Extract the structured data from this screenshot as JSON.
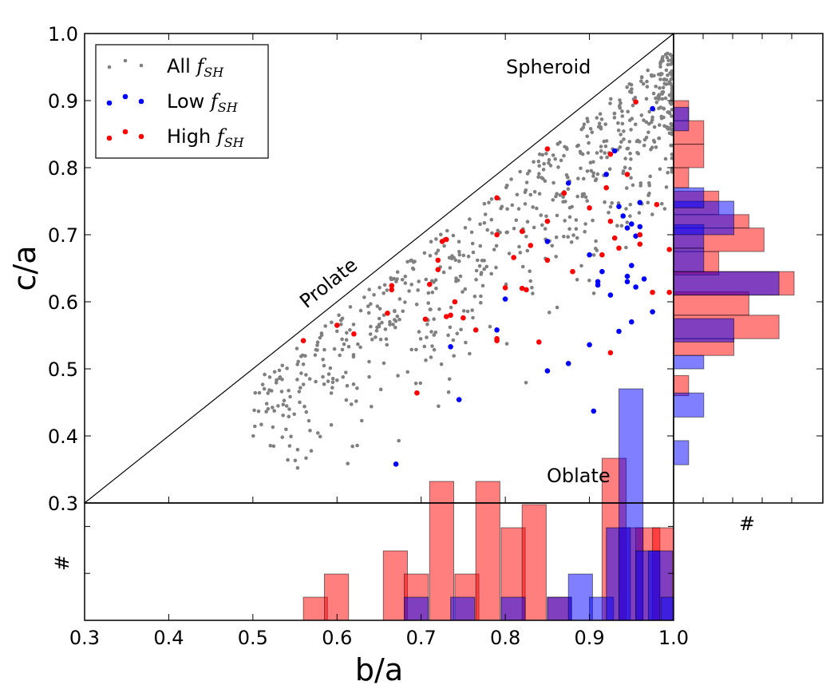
{
  "chart_data": {
    "type": "scatter",
    "title": "",
    "xlabel": "b/a",
    "ylabel": "c/a",
    "xlim": [
      0.3,
      1.0
    ],
    "ylim": [
      0.3,
      1.0
    ],
    "xticks": [
      "0.3",
      "0.4",
      "0.5",
      "0.6",
      "0.7",
      "0.8",
      "0.9",
      "1.0"
    ],
    "yticks": [
      "0.3",
      "0.4",
      "0.5",
      "0.6",
      "0.7",
      "0.8",
      "0.9",
      "1.0"
    ],
    "grid": false,
    "legend_position": "top-left",
    "annotations": {
      "spheroid": "Spheroid",
      "prolate": "Prolate",
      "oblate": "Oblate"
    },
    "legend": [
      {
        "name": "All",
        "sub": "f",
        "subscript": "SH",
        "color": "#808080"
      },
      {
        "name": "Low",
        "sub": "f",
        "subscript": "SH",
        "color": "#0000ff"
      },
      {
        "name": "High",
        "sub": "f",
        "subscript": "SH",
        "color": "#ff0000"
      }
    ],
    "histogram_label": "#",
    "series": [
      {
        "name": "Low f_SH",
        "color": "#0000ff",
        "points": [
          [
            0.975,
            0.888
          ],
          [
            0.93,
            0.825
          ],
          [
            0.92,
            0.79
          ],
          [
            0.875,
            0.777
          ],
          [
            0.96,
            0.748
          ],
          [
            0.935,
            0.742
          ],
          [
            0.94,
            0.728
          ],
          [
            0.95,
            0.716
          ],
          [
            0.945,
            0.71
          ],
          [
            0.96,
            0.712
          ],
          [
            0.955,
            0.698
          ],
          [
            0.85,
            0.69
          ],
          [
            0.9,
            0.67
          ],
          [
            0.95,
            0.654
          ],
          [
            0.915,
            0.645
          ],
          [
            0.945,
            0.638
          ],
          [
            0.91,
            0.63
          ],
          [
            0.91,
            0.625
          ],
          [
            0.965,
            0.634
          ],
          [
            0.945,
            0.63
          ],
          [
            0.955,
            0.622
          ],
          [
            0.8,
            0.604
          ],
          [
            0.925,
            0.61
          ],
          [
            0.975,
            0.585
          ],
          [
            0.95,
            0.57
          ],
          [
            0.935,
            0.556
          ],
          [
            0.79,
            0.558
          ],
          [
            0.9,
            0.536
          ],
          [
            0.735,
            0.533
          ],
          [
            0.875,
            0.508
          ],
          [
            0.85,
            0.497
          ],
          [
            0.745,
            0.454
          ],
          [
            0.905,
            0.437
          ],
          [
            0.67,
            0.358
          ]
        ]
      },
      {
        "name": "High f_SH",
        "color": "#ff0000",
        "points": [
          [
            0.955,
            0.898
          ],
          [
            0.85,
            0.828
          ],
          [
            0.925,
            0.82
          ],
          [
            0.945,
            0.79
          ],
          [
            0.92,
            0.77
          ],
          [
            0.87,
            0.762
          ],
          [
            0.79,
            0.755
          ],
          [
            0.9,
            0.74
          ],
          [
            0.98,
            0.745
          ],
          [
            0.925,
            0.72
          ],
          [
            0.96,
            0.7
          ],
          [
            0.85,
            0.72
          ],
          [
            0.96,
            0.686
          ],
          [
            0.93,
            0.695
          ],
          [
            0.82,
            0.705
          ],
          [
            0.79,
            0.7
          ],
          [
            0.935,
            0.68
          ],
          [
            0.725,
            0.69
          ],
          [
            0.73,
            0.693
          ],
          [
            0.83,
            0.684
          ],
          [
            0.995,
            0.678
          ],
          [
            0.915,
            0.67
          ],
          [
            0.81,
            0.666
          ],
          [
            0.85,
            0.662
          ],
          [
            0.72,
            0.662
          ],
          [
            0.72,
            0.648
          ],
          [
            0.88,
            0.645
          ],
          [
            0.665,
            0.624
          ],
          [
            0.665,
            0.618
          ],
          [
            0.71,
            0.626
          ],
          [
            0.8,
            0.621
          ],
          [
            0.82,
            0.62
          ],
          [
            0.825,
            0.618
          ],
          [
            0.975,
            0.614
          ],
          [
            0.995,
            0.614
          ],
          [
            0.74,
            0.6
          ],
          [
            0.66,
            0.583
          ],
          [
            0.735,
            0.58
          ],
          [
            0.73,
            0.578
          ],
          [
            0.75,
            0.576
          ],
          [
            0.705,
            0.574
          ],
          [
            0.6,
            0.565
          ],
          [
            0.765,
            0.558
          ],
          [
            0.62,
            0.552
          ],
          [
            0.79,
            0.545
          ],
          [
            0.79,
            0.542
          ],
          [
            0.84,
            0.54
          ],
          [
            0.56,
            0.542
          ],
          [
            0.925,
            0.524
          ],
          [
            0.695,
            0.464
          ]
        ]
      },
      {
        "name": "All f_SH",
        "color": "#808080",
        "generated_count": 700
      }
    ],
    "histogram_x": {
      "axis": "b/a",
      "bin_width": 0.0286,
      "low": [
        {
          "start": 0.68,
          "count": 1
        },
        {
          "start": 0.735,
          "count": 1
        },
        {
          "start": 0.795,
          "count": 1
        },
        {
          "start": 0.85,
          "count": 1
        },
        {
          "start": 0.875,
          "count": 2
        },
        {
          "start": 0.9,
          "count": 1
        },
        {
          "start": 0.92,
          "count": 4
        },
        {
          "start": 0.935,
          "count": 10
        },
        {
          "start": 0.955,
          "count": 3
        },
        {
          "start": 0.97,
          "count": 3
        },
        {
          "start": 0.985,
          "count": 1
        }
      ],
      "high": [
        {
          "start": 0.56,
          "count": 1
        },
        {
          "start": 0.585,
          "count": 2
        },
        {
          "start": 0.625,
          "count": 0
        },
        {
          "start": 0.655,
          "count": 3
        },
        {
          "start": 0.68,
          "count": 2
        },
        {
          "start": 0.71,
          "count": 6
        },
        {
          "start": 0.74,
          "count": 2
        },
        {
          "start": 0.765,
          "count": 6
        },
        {
          "start": 0.795,
          "count": 4
        },
        {
          "start": 0.82,
          "count": 5
        },
        {
          "start": 0.85,
          "count": 1
        },
        {
          "start": 0.875,
          "count": 0
        },
        {
          "start": 0.915,
          "count": 7
        },
        {
          "start": 0.935,
          "count": 4
        },
        {
          "start": 0.955,
          "count": 4
        },
        {
          "start": 0.975,
          "count": 4
        }
      ]
    },
    "histogram_y": {
      "axis": "c/a",
      "low": [
        {
          "start": 0.357,
          "end": 0.393,
          "count": 1
        },
        {
          "start": 0.428,
          "end": 0.464,
          "count": 2
        },
        {
          "start": 0.5,
          "end": 0.52,
          "count": 2
        },
        {
          "start": 0.54,
          "end": 0.575,
          "count": 4
        },
        {
          "start": 0.61,
          "end": 0.645,
          "count": 7
        },
        {
          "start": 0.645,
          "end": 0.68,
          "count": 2
        },
        {
          "start": 0.68,
          "end": 0.715,
          "count": 2
        },
        {
          "start": 0.7,
          "end": 0.75,
          "count": 4
        },
        {
          "start": 0.74,
          "end": 0.77,
          "count": 2
        },
        {
          "start": 0.855,
          "end": 0.89,
          "count": 1
        }
      ],
      "high": [
        {
          "start": 0.46,
          "end": 0.49,
          "count": 1
        },
        {
          "start": 0.52,
          "end": 0.545,
          "count": 4
        },
        {
          "start": 0.545,
          "end": 0.58,
          "count": 7
        },
        {
          "start": 0.58,
          "end": 0.615,
          "count": 5
        },
        {
          "start": 0.61,
          "end": 0.645,
          "count": 8
        },
        {
          "start": 0.64,
          "end": 0.675,
          "count": 3
        },
        {
          "start": 0.675,
          "end": 0.71,
          "count": 6
        },
        {
          "start": 0.71,
          "end": 0.73,
          "count": 5
        },
        {
          "start": 0.73,
          "end": 0.765,
          "count": 3
        },
        {
          "start": 0.77,
          "end": 0.8,
          "count": 1
        },
        {
          "start": 0.8,
          "end": 0.835,
          "count": 2
        },
        {
          "start": 0.835,
          "end": 0.87,
          "count": 2
        },
        {
          "start": 0.87,
          "end": 0.9,
          "count": 1
        }
      ],
      "max_count": 8
    }
  }
}
